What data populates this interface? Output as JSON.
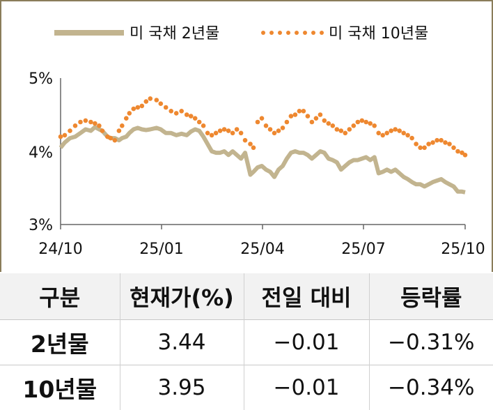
{
  "chart_data": {
    "type": "line",
    "x_ticks": [
      "24/10",
      "25/01",
      "25/04",
      "25/07",
      "25/10"
    ],
    "y_ticks": [
      "5%",
      "4%",
      "3%"
    ],
    "ylim": [
      3,
      5
    ],
    "legend_placement": "top",
    "grid": false,
    "series": [
      {
        "name": "미 국채 2년물",
        "style": "solid",
        "color": "#c2b48f",
        "points": [
          [
            "24/10/01",
            4.05
          ],
          [
            "24/10/05",
            4.12
          ],
          [
            "24/10/10",
            4.18
          ],
          [
            "24/10/15",
            4.2
          ],
          [
            "24/10/20",
            4.25
          ],
          [
            "24/10/25",
            4.3
          ],
          [
            "24/10/30",
            4.28
          ],
          [
            "24/11/03",
            4.33
          ],
          [
            "24/11/07",
            4.3
          ],
          [
            "24/11/10",
            4.28
          ],
          [
            "24/11/15",
            4.2
          ],
          [
            "24/11/18",
            4.18
          ],
          [
            "24/11/22",
            4.18
          ],
          [
            "24/11/26",
            4.15
          ],
          [
            "24/11/29",
            4.18
          ],
          [
            "24/12/03",
            4.2
          ],
          [
            "24/12/06",
            4.25
          ],
          [
            "24/12/10",
            4.3
          ],
          [
            "24/12/14",
            4.32
          ],
          [
            "24/12/18",
            4.3
          ],
          [
            "24/12/22",
            4.29
          ],
          [
            "24/12/26",
            4.3
          ],
          [
            "25/01/01",
            4.32
          ],
          [
            "25/01/05",
            4.3
          ],
          [
            "25/01/10",
            4.25
          ],
          [
            "25/01/15",
            4.25
          ],
          [
            "25/01/20",
            4.22
          ],
          [
            "25/01/25",
            4.24
          ],
          [
            "25/01/30",
            4.22
          ],
          [
            "25/02/03",
            4.27
          ],
          [
            "25/02/07",
            4.3
          ],
          [
            "25/02/11",
            4.28
          ],
          [
            "25/02/15",
            4.2
          ],
          [
            "25/02/19",
            4.1
          ],
          [
            "25/02/23",
            4.0
          ],
          [
            "25/02/27",
            3.98
          ],
          [
            "25/03/03",
            3.98
          ],
          [
            "25/03/07",
            4.0
          ],
          [
            "25/03/11",
            3.95
          ],
          [
            "25/03/15",
            4.0
          ],
          [
            "25/03/19",
            3.95
          ],
          [
            "25/03/23",
            3.9
          ],
          [
            "25/03/27",
            3.98
          ],
          [
            "25/04/01",
            3.68
          ],
          [
            "25/04/04",
            3.72
          ],
          [
            "25/04/08",
            3.78
          ],
          [
            "25/04/12",
            3.8
          ],
          [
            "25/04/16",
            3.75
          ],
          [
            "25/04/20",
            3.72
          ],
          [
            "25/04/24",
            3.65
          ],
          [
            "25/04/28",
            3.75
          ],
          [
            "25/05/02",
            3.8
          ],
          [
            "25/05/06",
            3.9
          ],
          [
            "25/05/10",
            3.98
          ],
          [
            "25/05/14",
            4.0
          ],
          [
            "25/05/18",
            3.98
          ],
          [
            "25/05/22",
            3.98
          ],
          [
            "25/05/26",
            3.95
          ],
          [
            "25/05/30",
            3.9
          ],
          [
            "25/06/03",
            3.95
          ],
          [
            "25/06/07",
            4.0
          ],
          [
            "25/06/11",
            3.98
          ],
          [
            "25/06/15",
            3.9
          ],
          [
            "25/06/19",
            3.88
          ],
          [
            "25/06/23",
            3.85
          ],
          [
            "25/06/27",
            3.75
          ],
          [
            "25/07/01",
            3.8
          ],
          [
            "25/07/05",
            3.85
          ],
          [
            "25/07/09",
            3.88
          ],
          [
            "25/07/13",
            3.88
          ],
          [
            "25/07/17",
            3.9
          ],
          [
            "25/07/21",
            3.92
          ],
          [
            "25/07/25",
            3.88
          ],
          [
            "25/07/29",
            3.92
          ],
          [
            "25/08/02",
            3.7
          ],
          [
            "25/08/06",
            3.72
          ],
          [
            "25/08/10",
            3.75
          ],
          [
            "25/08/14",
            3.72
          ],
          [
            "25/08/18",
            3.75
          ],
          [
            "25/08/22",
            3.7
          ],
          [
            "25/08/26",
            3.65
          ],
          [
            "25/08/30",
            3.62
          ],
          [
            "25/09/03",
            3.58
          ],
          [
            "25/09/07",
            3.55
          ],
          [
            "25/09/11",
            3.55
          ],
          [
            "25/09/15",
            3.52
          ],
          [
            "25/09/19",
            3.55
          ],
          [
            "25/09/23",
            3.58
          ],
          [
            "25/09/27",
            3.6
          ],
          [
            "25/10/01",
            3.62
          ],
          [
            "25/10/05",
            3.58
          ],
          [
            "25/10/09",
            3.55
          ],
          [
            "25/10/13",
            3.52
          ],
          [
            "25/10/17",
            3.45
          ],
          [
            "25/10/21",
            3.45
          ],
          [
            "25/10/24",
            3.44
          ]
        ]
      },
      {
        "name": "미 국채 10년물",
        "style": "dotted",
        "color": "#ee8830",
        "points": [
          [
            "24/10/01",
            4.2
          ],
          [
            "24/10/05",
            4.22
          ],
          [
            "24/10/10",
            4.28
          ],
          [
            "24/10/15",
            4.35
          ],
          [
            "24/10/20",
            4.4
          ],
          [
            "24/10/25",
            4.42
          ],
          [
            "24/10/30",
            4.4
          ],
          [
            "24/11/03",
            4.38
          ],
          [
            "24/11/07",
            4.35
          ],
          [
            "24/11/10",
            4.28
          ],
          [
            "24/11/15",
            4.2
          ],
          [
            "24/11/18",
            4.18
          ],
          [
            "24/11/22",
            4.15
          ],
          [
            "24/11/26",
            4.28
          ],
          [
            "24/11/29",
            4.35
          ],
          [
            "24/12/03",
            4.45
          ],
          [
            "24/12/06",
            4.52
          ],
          [
            "24/12/10",
            4.58
          ],
          [
            "24/12/14",
            4.6
          ],
          [
            "24/12/18",
            4.62
          ],
          [
            "24/12/22",
            4.68
          ],
          [
            "24/12/26",
            4.72
          ],
          [
            "25/01/01",
            4.7
          ],
          [
            "25/01/05",
            4.65
          ],
          [
            "25/01/10",
            4.6
          ],
          [
            "25/01/15",
            4.55
          ],
          [
            "25/01/20",
            4.52
          ],
          [
            "25/01/25",
            4.55
          ],
          [
            "25/01/30",
            4.5
          ],
          [
            "25/02/03",
            4.48
          ],
          [
            "25/02/07",
            4.45
          ],
          [
            "25/02/11",
            4.4
          ],
          [
            "25/02/15",
            4.35
          ],
          [
            "25/02/19",
            4.25
          ],
          [
            "25/02/23",
            4.22
          ],
          [
            "25/02/27",
            4.25
          ],
          [
            "25/03/03",
            4.28
          ],
          [
            "25/03/07",
            4.3
          ],
          [
            "25/03/11",
            4.28
          ],
          [
            "25/03/15",
            4.25
          ],
          [
            "25/03/19",
            4.3
          ],
          [
            "25/03/23",
            4.25
          ],
          [
            "25/03/27",
            4.15
          ],
          [
            "25/04/01",
            4.1
          ],
          [
            "25/04/04",
            4.05
          ],
          [
            "25/04/08",
            4.4
          ],
          [
            "25/04/12",
            4.45
          ],
          [
            "25/04/16",
            4.35
          ],
          [
            "25/04/20",
            4.3
          ],
          [
            "25/04/24",
            4.25
          ],
          [
            "25/04/28",
            4.28
          ],
          [
            "25/05/02",
            4.32
          ],
          [
            "25/05/06",
            4.4
          ],
          [
            "25/05/10",
            4.48
          ],
          [
            "25/05/14",
            4.5
          ],
          [
            "25/05/18",
            4.55
          ],
          [
            "25/05/22",
            4.55
          ],
          [
            "25/05/26",
            4.48
          ],
          [
            "25/05/30",
            4.4
          ],
          [
            "25/06/03",
            4.45
          ],
          [
            "25/06/07",
            4.5
          ],
          [
            "25/06/11",
            4.42
          ],
          [
            "25/06/15",
            4.38
          ],
          [
            "25/06/19",
            4.35
          ],
          [
            "25/06/23",
            4.3
          ],
          [
            "25/06/27",
            4.28
          ],
          [
            "25/07/01",
            4.25
          ],
          [
            "25/07/05",
            4.3
          ],
          [
            "25/07/09",
            4.35
          ],
          [
            "25/07/13",
            4.4
          ],
          [
            "25/07/17",
            4.42
          ],
          [
            "25/07/21",
            4.4
          ],
          [
            "25/07/25",
            4.38
          ],
          [
            "25/07/29",
            4.35
          ],
          [
            "25/08/02",
            4.25
          ],
          [
            "25/08/06",
            4.22
          ],
          [
            "25/08/10",
            4.25
          ],
          [
            "25/08/14",
            4.28
          ],
          [
            "25/08/18",
            4.3
          ],
          [
            "25/08/22",
            4.28
          ],
          [
            "25/08/26",
            4.25
          ],
          [
            "25/08/30",
            4.22
          ],
          [
            "25/09/03",
            4.18
          ],
          [
            "25/09/07",
            4.1
          ],
          [
            "25/09/11",
            4.05
          ],
          [
            "25/09/15",
            4.05
          ],
          [
            "25/09/19",
            4.1
          ],
          [
            "25/09/23",
            4.12
          ],
          [
            "25/09/27",
            4.15
          ],
          [
            "25/10/01",
            4.15
          ],
          [
            "25/10/05",
            4.12
          ],
          [
            "25/10/09",
            4.1
          ],
          [
            "25/10/13",
            4.05
          ],
          [
            "25/10/17",
            4.0
          ],
          [
            "25/10/21",
            3.98
          ],
          [
            "25/10/24",
            3.95
          ]
        ]
      }
    ]
  },
  "table": {
    "headers": [
      "구분",
      "현재가(%)",
      "전일 대비",
      "등락률"
    ],
    "rows": [
      [
        "2년물",
        "3.44",
        "−0.01",
        "−0.31%"
      ],
      [
        "10년물",
        "3.95",
        "−0.01",
        "−0.34%"
      ]
    ]
  }
}
